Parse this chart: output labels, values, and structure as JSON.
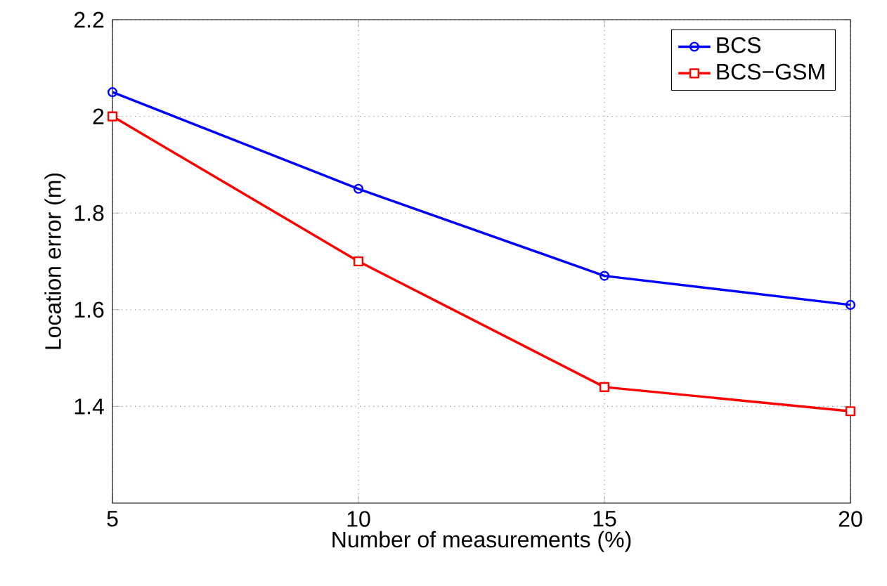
{
  "chart_data": {
    "type": "line",
    "xlabel": "Number of measurements (%)",
    "ylabel": "Location error (m)",
    "x": [
      5,
      10,
      15,
      20
    ],
    "series": [
      {
        "name": "BCS",
        "color": "#0000ff",
        "values": [
          2.05,
          1.85,
          1.67,
          1.61
        ],
        "marker": "circle"
      },
      {
        "name": "BCS−GSM",
        "color": "#ff0000",
        "values": [
          2.0,
          1.7,
          1.44,
          1.39
        ],
        "marker": "square"
      }
    ],
    "xlim": [
      5,
      20
    ],
    "ylim": [
      1.2,
      2.2
    ],
    "xticks": [
      5,
      10,
      15,
      20
    ],
    "yticks": [
      1.4,
      1.6,
      1.8,
      2,
      2.2
    ],
    "grid": true,
    "legend": "top right",
    "line_style": "solid"
  }
}
